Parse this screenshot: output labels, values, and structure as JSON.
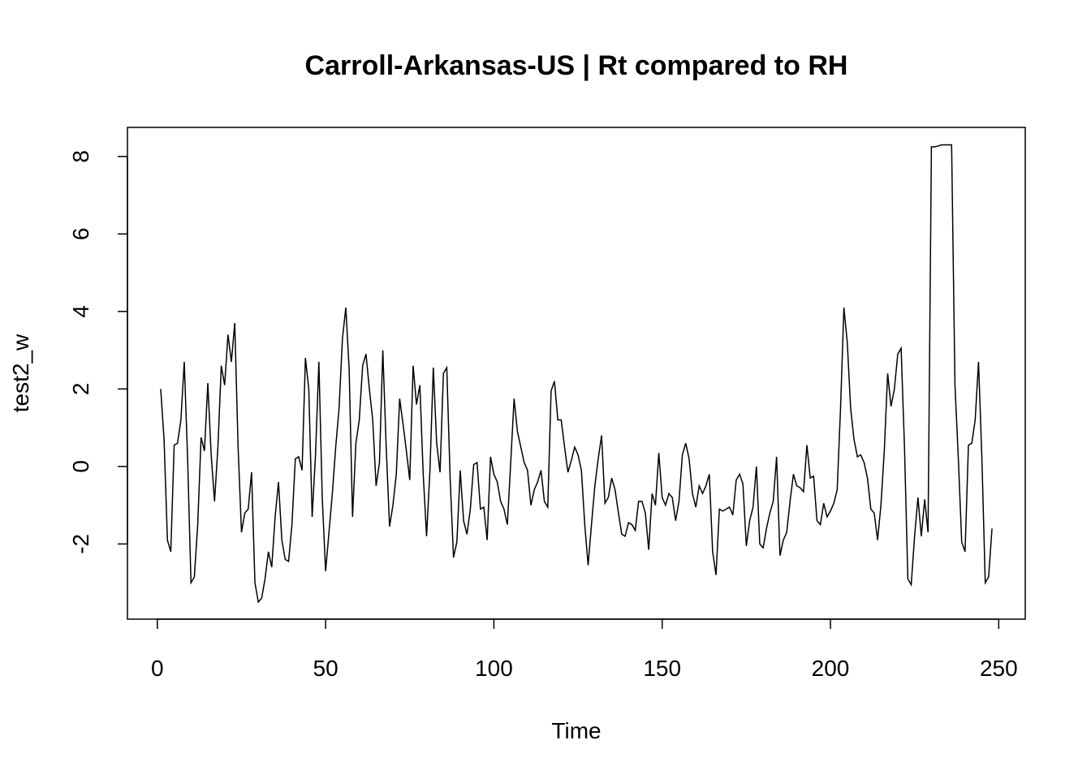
{
  "chart_data": {
    "type": "line",
    "title": "Carroll-Arkansas-US | Rt compared to RH",
    "xlabel": "Time",
    "ylabel": "test2_w",
    "x": [
      1,
      2,
      3,
      4,
      5,
      6,
      7,
      8,
      9,
      10,
      11,
      12,
      13,
      14,
      15,
      16,
      17,
      18,
      19,
      20,
      21,
      22,
      23,
      24,
      25,
      26,
      27,
      28,
      29,
      30,
      31,
      32,
      33,
      34,
      35,
      36,
      37,
      38,
      39,
      40,
      41,
      42,
      43,
      44,
      45,
      46,
      47,
      48,
      49,
      50,
      51,
      52,
      53,
      54,
      55,
      56,
      57,
      58,
      59,
      60,
      61,
      62,
      63,
      64,
      65,
      66,
      67,
      68,
      69,
      70,
      71,
      72,
      73,
      74,
      75,
      76,
      77,
      78,
      79,
      80,
      81,
      82,
      83,
      84,
      85,
      86,
      87,
      88,
      89,
      90,
      91,
      92,
      93,
      94,
      95,
      96,
      97,
      98,
      99,
      100,
      101,
      102,
      103,
      104,
      105,
      106,
      107,
      108,
      109,
      110,
      111,
      112,
      113,
      114,
      115,
      116,
      117,
      118,
      119,
      120,
      121,
      122,
      123,
      124,
      125,
      126,
      127,
      128,
      129,
      130,
      131,
      132,
      133,
      134,
      135,
      136,
      137,
      138,
      139,
      140,
      141,
      142,
      143,
      144,
      145,
      146,
      147,
      148,
      149,
      150,
      151,
      152,
      153,
      154,
      155,
      156,
      157,
      158,
      159,
      160,
      161,
      162,
      163,
      164,
      165,
      166,
      167,
      168,
      169,
      170,
      171,
      172,
      173,
      174,
      175,
      176,
      177,
      178,
      179,
      180,
      181,
      182,
      183,
      184,
      185,
      186,
      187,
      188,
      189,
      190,
      191,
      192,
      193,
      194,
      195,
      196,
      197,
      198,
      199,
      200,
      201,
      202,
      203,
      204,
      205,
      206,
      207,
      208,
      209,
      210,
      211,
      212,
      213,
      214,
      215,
      216,
      217,
      218,
      219,
      220,
      221,
      222,
      223,
      224,
      225,
      226,
      227,
      228,
      229,
      230,
      231,
      232,
      233,
      234,
      235,
      236,
      237,
      238,
      239,
      240,
      241,
      242,
      243,
      244,
      245,
      246,
      247,
      248
    ],
    "series": [
      {
        "name": "test2_w",
        "color": "#000000",
        "values": [
          2.0,
          0.7,
          -1.9,
          -2.2,
          0.55,
          0.6,
          1.2,
          2.7,
          0.2,
          -3.0,
          -2.85,
          -1.5,
          0.75,
          0.4,
          2.15,
          0.3,
          -0.9,
          0.5,
          2.6,
          2.1,
          3.4,
          2.7,
          3.7,
          0.5,
          -1.7,
          -1.2,
          -1.1,
          -0.15,
          -3.0,
          -3.5,
          -3.4,
          -2.9,
          -2.2,
          -2.6,
          -1.3,
          -0.4,
          -1.9,
          -2.4,
          -2.45,
          -1.5,
          0.2,
          0.25,
          -0.1,
          2.8,
          2.0,
          -1.3,
          0.3,
          2.7,
          -0.8,
          -2.7,
          -1.7,
          -0.7,
          0.5,
          1.5,
          3.3,
          4.1,
          2.5,
          -1.3,
          0.6,
          1.2,
          2.6,
          2.9,
          2.0,
          1.2,
          -0.5,
          0.1,
          3.0,
          0.5,
          -1.55,
          -1.0,
          -0.2,
          1.75,
          1.1,
          0.4,
          -0.35,
          2.6,
          1.6,
          2.1,
          -0.2,
          -1.8,
          -0.1,
          2.55,
          0.6,
          -0.15,
          2.4,
          2.55,
          -0.3,
          -2.35,
          -1.95,
          -0.1,
          -1.4,
          -1.75,
          -1.1,
          0.05,
          0.1,
          -1.1,
          -1.05,
          -1.9,
          0.25,
          -0.2,
          -0.4,
          -0.9,
          -1.1,
          -1.5,
          0.1,
          1.75,
          0.9,
          0.5,
          0.1,
          -0.1,
          -1.0,
          -0.6,
          -0.4,
          -0.1,
          -0.9,
          -1.05,
          1.95,
          2.2,
          1.2,
          1.2,
          0.5,
          -0.15,
          0.15,
          0.5,
          0.3,
          -0.1,
          -1.5,
          -2.55,
          -1.5,
          -0.5,
          0.2,
          0.8,
          -0.95,
          -0.8,
          -0.3,
          -0.6,
          -1.2,
          -1.75,
          -1.8,
          -1.45,
          -1.5,
          -1.65,
          -0.9,
          -0.9,
          -1.2,
          -2.15,
          -0.7,
          -1.0,
          0.35,
          -0.8,
          -1.0,
          -0.7,
          -0.8,
          -1.4,
          -0.9,
          0.3,
          0.6,
          0.2,
          -0.7,
          -1.05,
          -0.5,
          -0.7,
          -0.5,
          -0.2,
          -2.2,
          -2.8,
          -1.1,
          -1.15,
          -1.1,
          -1.05,
          -1.25,
          -0.35,
          -0.2,
          -0.45,
          -2.05,
          -1.4,
          -1.05,
          0.0,
          -2.0,
          -2.1,
          -1.6,
          -1.2,
          -0.9,
          0.25,
          -2.3,
          -1.9,
          -1.7,
          -0.9,
          -0.2,
          -0.5,
          -0.55,
          -0.65,
          0.55,
          -0.3,
          -0.25,
          -1.4,
          -1.5,
          -0.95,
          -1.3,
          -1.15,
          -0.95,
          -0.6,
          1.5,
          4.1,
          3.2,
          1.5,
          0.7,
          0.25,
          0.3,
          0.1,
          -0.3,
          -1.1,
          -1.2,
          -1.9,
          -1.0,
          0.4,
          2.4,
          1.55,
          2.0,
          2.9,
          3.05,
          0.5,
          -2.9,
          -3.05,
          -1.8,
          -0.8,
          -1.8,
          -0.85,
          -1.7,
          8.25,
          8.25,
          8.27,
          8.3,
          8.3,
          8.3,
          8.3,
          2.1,
          0.2,
          -1.95,
          -2.2,
          0.55,
          0.6,
          1.2,
          2.7,
          0.2,
          -3.0,
          -2.85,
          -1.6
        ]
      }
    ],
    "xlim": [
      -8.88,
      257.88
    ],
    "ylim": [
      -3.94,
      8.75
    ],
    "xticks": [
      0,
      50,
      100,
      150,
      200,
      250
    ],
    "yticks": [
      -2,
      0,
      2,
      4,
      6,
      8
    ]
  }
}
